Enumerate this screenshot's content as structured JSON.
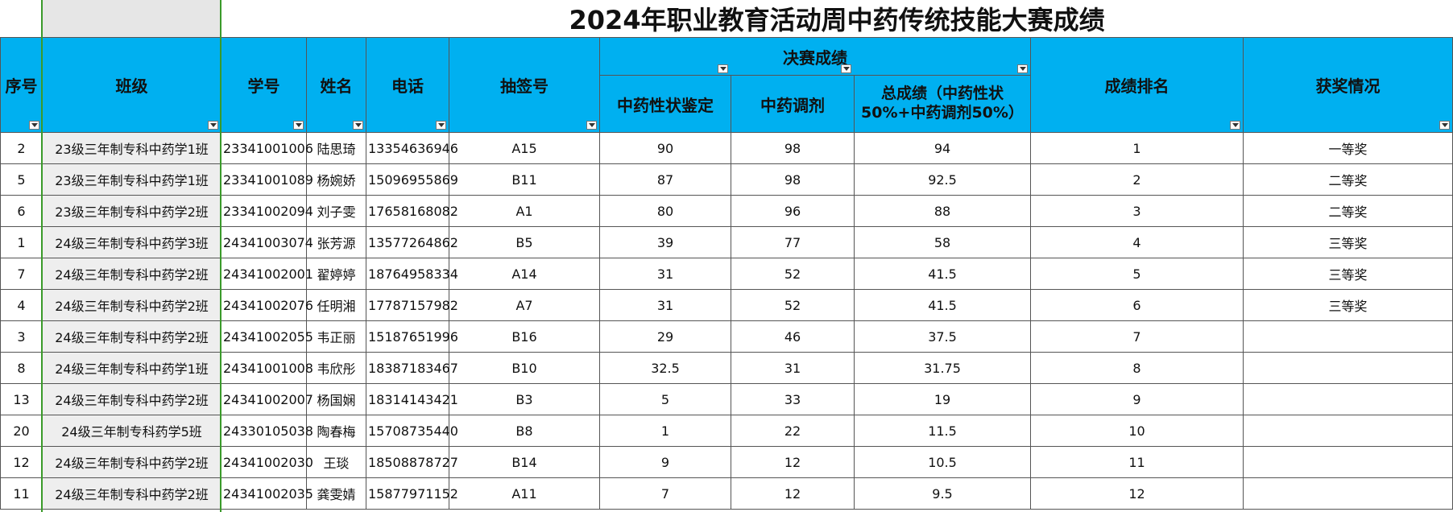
{
  "title": "2024年职业教育活动周中药传统技能大赛成绩",
  "headers": {
    "seq": "序号",
    "class": "班级",
    "student_id": "学号",
    "name": "姓名",
    "phone": "电话",
    "draw": "抽签号",
    "final": "决赛成绩",
    "identify": "中药性状鉴定",
    "dispense": "中药调剂",
    "total": "总成绩（中药性状50%+中药调剂50%）",
    "rank": "成绩排名",
    "award": "获奖情况"
  },
  "rows": [
    [
      2,
      "23级三年制专科中药学1班",
      "23341001006",
      "陆思琦",
      "13354636946",
      "A15",
      90,
      98,
      94,
      1,
      "一等奖"
    ],
    [
      5,
      "23级三年制专科中药学1班",
      "23341001089",
      "杨婉娇",
      "15096955869",
      "B11",
      87,
      98,
      92.5,
      2,
      "二等奖"
    ],
    [
      6,
      "23级三年制专科中药学2班",
      "23341002094",
      "刘子雯",
      "17658168082",
      "A1",
      80,
      96,
      88,
      3,
      "二等奖"
    ],
    [
      1,
      "24级三年制专科中药学3班",
      "24341003074",
      "张芳源",
      "13577264862",
      "B5",
      39,
      77,
      58,
      4,
      "三等奖"
    ],
    [
      7,
      "24级三年制专科中药学2班",
      "24341002001",
      "翟婷婷",
      "18764958334",
      "A14",
      31,
      52,
      41.5,
      5,
      "三等奖"
    ],
    [
      4,
      "24级三年制专科中药学2班",
      "24341002076",
      "任明湘",
      "17787157982",
      "A7",
      31,
      52,
      41.5,
      6,
      "三等奖"
    ],
    [
      3,
      "24级三年制专科中药学2班",
      "24341002055",
      "韦正丽",
      "15187651996",
      "B16",
      29,
      46,
      37.5,
      7,
      null
    ],
    [
      8,
      "24级三年制专科中药学1班",
      "24341001008",
      "韦欣彤",
      "18387183467",
      "B10",
      32.5,
      31,
      31.75,
      8,
      null
    ],
    [
      13,
      "24级三年制专科中药学2班",
      "24341002007",
      "杨国娴",
      "18314143421",
      "B3",
      5,
      33,
      19,
      9,
      null
    ],
    [
      20,
      "24级三年制专科药学5班",
      "24330105038",
      "陶春梅",
      "15708735440",
      "B8",
      1,
      22,
      11.5,
      10,
      null
    ],
    [
      12,
      "24级三年制专科中药学2班",
      "24341002030",
      "王琰",
      "18508878727",
      "B14",
      9,
      12,
      10.5,
      11,
      null
    ],
    [
      11,
      "24级三年制专科中药学2班",
      "24341002035",
      "龚雯婧",
      "15877971152",
      "A11",
      7,
      12,
      9.5,
      12,
      null
    ]
  ]
}
